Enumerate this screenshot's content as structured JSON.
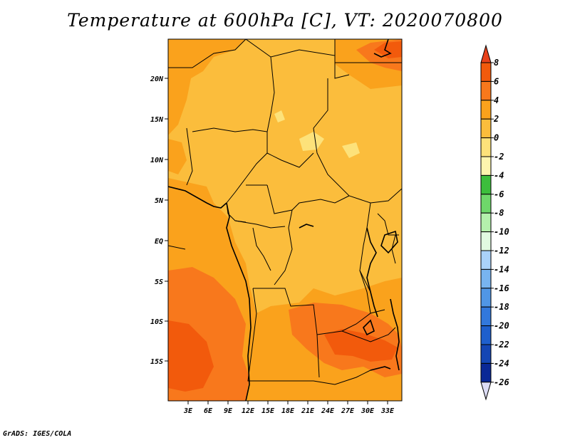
{
  "title": "Temperature at 600hPa [C], VT: 2020070800",
  "credit": "GrADS: IGES/COLA",
  "map": {
    "lon_labels": [
      "3E",
      "6E",
      "9E",
      "12E",
      "15E",
      "18E",
      "21E",
      "24E",
      "27E",
      "30E",
      "33E"
    ],
    "lat_labels": [
      "20N",
      "15N",
      "10N",
      "5N",
      "EQ",
      "5S",
      "10S",
      "15S"
    ]
  },
  "colorbar": {
    "labels": [
      "8",
      "6",
      "4",
      "2",
      "0",
      "-2",
      "-4",
      "-6",
      "-8",
      "-10",
      "-12",
      "-14",
      "-16",
      "-18",
      "-20",
      "-22",
      "-24",
      "-26"
    ],
    "colors": {
      "above_8": "#e8411a",
      "6_to_8": "#f25a0c",
      "4_to_6": "#f8781c",
      "2_to_4": "#faa21c",
      "0_to_2": "#fbbd3c",
      "-2_to_0": "#fde27a",
      "-4_to_-2": "#fdf5ae",
      "-6_to_-4": "#3cbe3c",
      "-8_to_-6": "#6ed76a",
      "-10_to_-8": "#b4f0ac",
      "-12_to_-10": "#e1fae1",
      "-14_to_-12": "#aad2fa",
      "-16_to_-14": "#78b4f0",
      "-18_to_-16": "#5096e6",
      "-20_to_-18": "#3278dc",
      "-22_to_-20": "#1e5fcd",
      "-24_to_-22": "#1446b4",
      "-26_to_-24": "#0a2896",
      "below_-26": "#dcdcf5"
    }
  }
}
